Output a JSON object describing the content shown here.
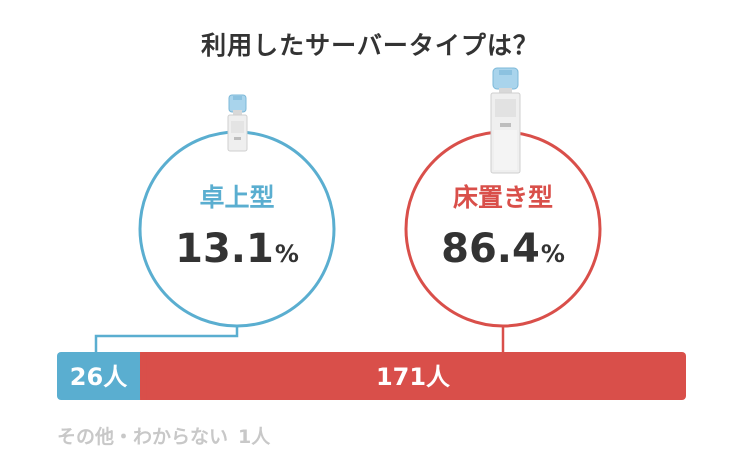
{
  "chart_data": {
    "type": "bar",
    "title": "利用したサーバータイプは？",
    "categories": [
      "卓上型",
      "床置き型"
    ],
    "percent_labels": [
      "13.1",
      "86.4"
    ],
    "percent_unit": "%",
    "counts": [
      26,
      171
    ],
    "count_labels": [
      "26人",
      "171人"
    ],
    "other": {
      "label": "その他・わからない",
      "count_label": "1人",
      "count": 1
    },
    "colors": {
      "tabletop": "#5aaed0",
      "floor": "#d94f4a",
      "other_text": "#c8c8c8",
      "percent_text": "#333333"
    }
  }
}
